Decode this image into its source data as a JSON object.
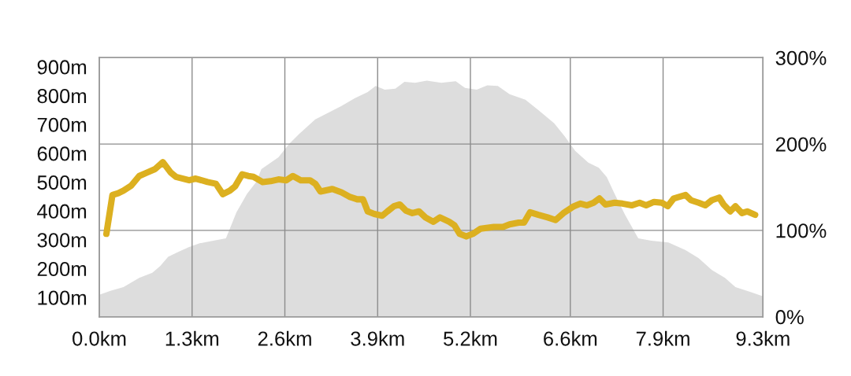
{
  "chart_data": {
    "type": "area",
    "xlim": [
      0,
      9.3
    ],
    "xticks": [
      {
        "value": 0,
        "label": "0.0km"
      },
      {
        "value": 1.3,
        "label": "1.3km"
      },
      {
        "value": 2.6,
        "label": "2.6km"
      },
      {
        "value": 3.9,
        "label": "3.9km"
      },
      {
        "value": 5.2,
        "label": "5.2km"
      },
      {
        "value": 6.6,
        "label": "6.6km"
      },
      {
        "value": 7.9,
        "label": "7.9km"
      },
      {
        "value": 9.3,
        "label": "9.3km"
      }
    ],
    "ylim": [
      33,
      932
    ],
    "yticks": [
      {
        "value": 100,
        "label": "100m"
      },
      {
        "value": 200,
        "label": "200m"
      },
      {
        "value": 300,
        "label": "300m"
      },
      {
        "value": 400,
        "label": "400m"
      },
      {
        "value": 500,
        "label": "500m"
      },
      {
        "value": 600,
        "label": "600m"
      },
      {
        "value": 700,
        "label": "700m"
      },
      {
        "value": 800,
        "label": "800m"
      },
      {
        "value": 900,
        "label": "900m"
      }
    ],
    "y2lim": [
      0,
      300
    ],
    "y2ticks": [
      {
        "value": 0,
        "label": "0%"
      },
      {
        "value": 100,
        "label": "100%"
      },
      {
        "value": 200,
        "label": "200%"
      },
      {
        "value": 300,
        "label": "300%"
      }
    ],
    "grid": true,
    "series": [
      {
        "color": "#dddddd",
        "x": [
          0,
          0.155,
          0.338,
          0.559,
          0.743,
          0.853,
          0.964,
          1.112,
          1.259,
          1.406,
          1.553,
          1.774,
          1.848,
          1.921,
          2.069,
          2.197,
          2.271,
          2.51,
          2.657,
          2.804,
          3.026,
          3.21,
          3.393,
          3.577,
          3.761,
          3.872,
          4.0,
          4.148,
          4.276,
          4.424,
          4.589,
          4.792,
          4.994,
          5.124,
          5.289,
          5.436,
          5.584,
          5.749,
          5.97,
          6.153,
          6.374,
          6.521,
          6.668,
          6.852,
          6.999,
          7.11,
          7.221,
          7.368,
          7.552,
          7.736,
          7.975,
          8.215,
          8.399,
          8.583,
          8.767,
          8.914,
          9.135,
          9.3
        ],
        "values": [
          109,
          123,
          136,
          168,
          186,
          209,
          241,
          259,
          275,
          288,
          295,
          305,
          350,
          395,
          459,
          500,
          545,
          586,
          632,
          668,
          718,
          741,
          764,
          791,
          813,
          834,
          821,
          824,
          848,
          845,
          852,
          845,
          850,
          827,
          821,
          836,
          834,
          805,
          786,
          750,
          704,
          659,
          609,
          568,
          550,
          518,
          459,
          386,
          305,
          297,
          291,
          264,
          236,
          195,
          168,
          136,
          118,
          104
        ]
      },
      {
        "type": "line",
        "axis": "y2",
        "color": "#dcb020",
        "x": [
          0.099,
          0.184,
          0.265,
          0.338,
          0.449,
          0.559,
          0.669,
          0.78,
          0.891,
          1.001,
          1.075,
          1.259,
          1.351,
          1.517,
          1.634,
          1.73,
          1.829,
          1.903,
          2.002,
          2.087,
          2.16,
          2.289,
          2.4,
          2.51,
          2.621,
          2.713,
          2.823,
          2.952,
          3.026,
          3.099,
          3.265,
          3.393,
          3.504,
          3.614,
          3.695,
          3.761,
          3.853,
          3.964,
          4.037,
          4.129,
          4.21,
          4.295,
          4.387,
          4.48,
          4.571,
          4.681,
          4.773,
          4.902,
          4.976,
          5.05,
          5.142,
          5.234,
          5.344,
          5.528,
          5.657,
          5.749,
          5.877,
          5.951,
          6.036,
          6.153,
          6.282,
          6.393,
          6.503,
          6.65,
          6.743,
          6.834,
          6.926,
          7.008,
          7.092,
          7.221,
          7.331,
          7.46,
          7.571,
          7.662,
          7.773,
          7.883,
          7.964,
          8.049,
          8.215,
          8.289,
          8.399,
          8.491,
          8.583,
          8.686,
          8.748,
          8.841,
          8.914,
          9.006,
          9.079,
          9.19
        ],
        "values": [
          96,
          141,
          143,
          146,
          152,
          163,
          167,
          171,
          179,
          167,
          162,
          158,
          160,
          156,
          154,
          142,
          146,
          151,
          165,
          163,
          162,
          156,
          157,
          159,
          158,
          163,
          158,
          158,
          154,
          145,
          148,
          144,
          139,
          136,
          136,
          122,
          119,
          117,
          122,
          128,
          130,
          123,
          120,
          122,
          115,
          110,
          115,
          110,
          106,
          96,
          93,
          96,
          102,
          104,
          104,
          107,
          109,
          109,
          121,
          118,
          115,
          112,
          120,
          128,
          131,
          129,
          132,
          137,
          130,
          132,
          131,
          129,
          132,
          129,
          133,
          132,
          128,
          137,
          141,
          135,
          132,
          129,
          135,
          138,
          130,
          122,
          128,
          120,
          122,
          118
        ]
      }
    ]
  }
}
